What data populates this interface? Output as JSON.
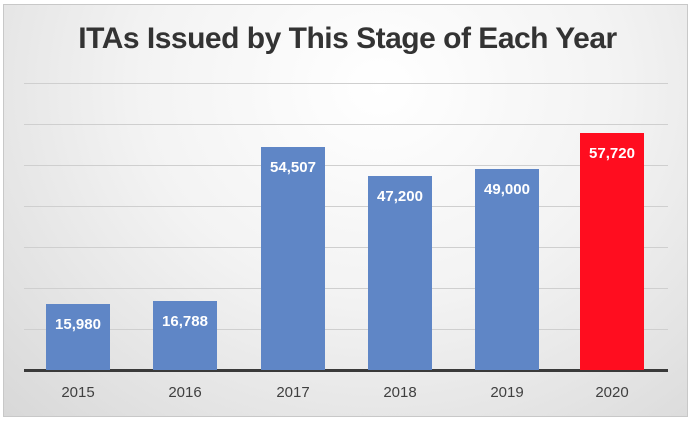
{
  "chart_data": {
    "type": "bar",
    "title": "ITAs Issued by This Stage of Each Year",
    "xlabel": "",
    "ylabel": "",
    "categories": [
      "2015",
      "2016",
      "2017",
      "2018",
      "2019",
      "2020"
    ],
    "values": [
      15980,
      16788,
      54507,
      47200,
      49000,
      57720
    ],
    "labels": [
      "15,980",
      "16,788",
      "54,507",
      "47,200",
      "49,000",
      "57,720"
    ],
    "colors": [
      "#5f86c6",
      "#5f86c6",
      "#5f86c6",
      "#5f86c6",
      "#5f86c6",
      "#ff0d1f"
    ],
    "ylim": [
      0,
      70000
    ],
    "grid": true,
    "legend": "none"
  }
}
